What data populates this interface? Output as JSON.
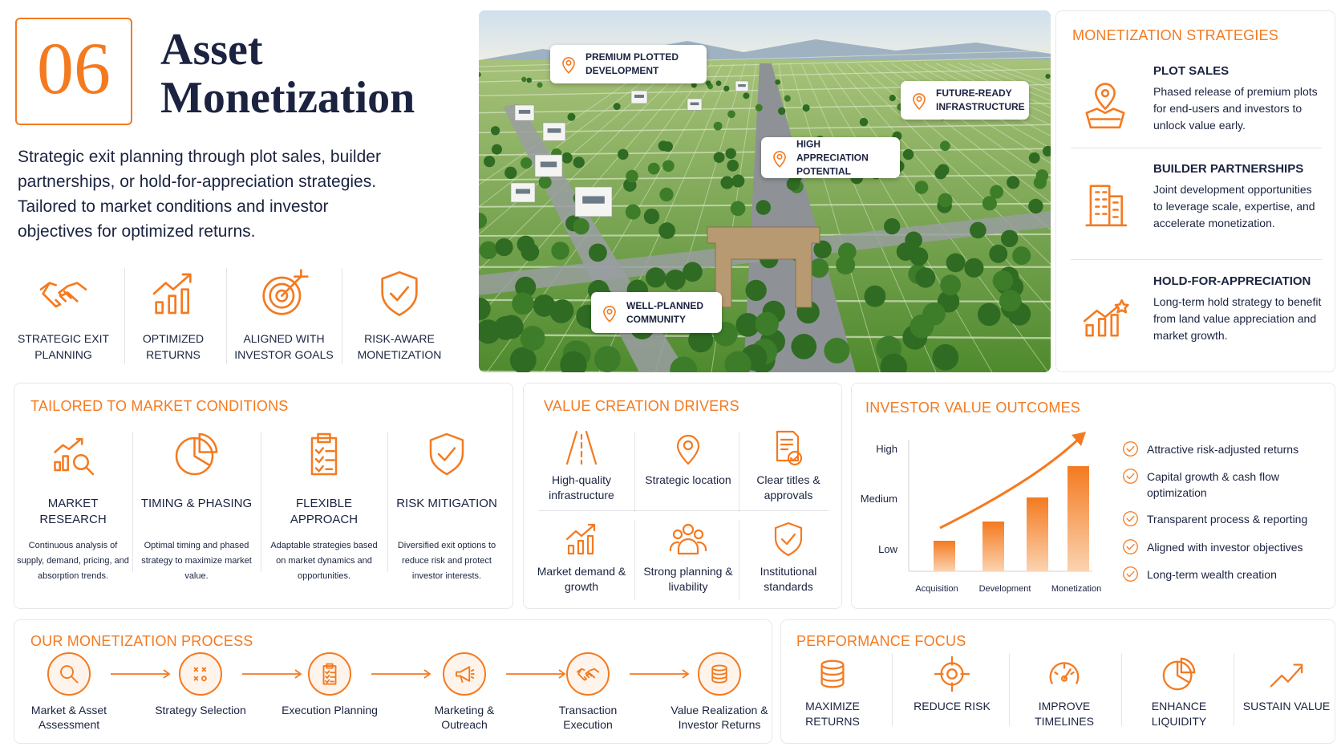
{
  "header": {
    "number": "06",
    "title": "Asset Monetization",
    "description": "Strategic exit planning through plot sales, builder partnerships, or hold-for-appreciation strategies. Tailored to market conditions and investor objectives for optimized returns."
  },
  "highlights": [
    "STRATEGIC EXIT PLANNING",
    "OPTIMIZED RETURNS",
    "ALIGNED WITH INVESTOR GOALS",
    "RISK-AWARE MONETIZATION"
  ],
  "image_callouts": [
    "PREMIUM PLOTTED DEVELOPMENT",
    "FUTURE-READY INFRASTRUCTURE",
    "HIGH APPRECIATION POTENTIAL",
    "WELL-PLANNED COMMUNITY"
  ],
  "monetization_strategies": {
    "title": "MONETIZATION STRATEGIES",
    "items": [
      {
        "title": "PLOT SALES",
        "text": "Phased release of premium plots for end-users and investors to unlock value early."
      },
      {
        "title": "BUILDER PARTNERSHIPS",
        "text": "Joint development opportunities to leverage scale, expertise, and accelerate monetization."
      },
      {
        "title": "HOLD-FOR-APPRECIATION",
        "text": "Long-term hold strategy to benefit from land value appreciation and market growth."
      }
    ]
  },
  "market_conditions": {
    "title": "TAILORED TO MARKET CONDITIONS",
    "items": [
      {
        "title": "MARKET RESEARCH",
        "text": "Continuous analysis of supply, demand, pricing, and absorption trends."
      },
      {
        "title": "TIMING & PHASING",
        "text": "Optimal timing and phased strategy to maximize market value."
      },
      {
        "title": "FLEXIBLE APPROACH",
        "text": "Adaptable strategies based on market dynamics and opportunities."
      },
      {
        "title": "RISK MITIGATION",
        "text": "Diversified exit options to reduce risk and protect investor interests."
      }
    ]
  },
  "value_drivers": {
    "title": "VALUE CREATION DRIVERS",
    "items": [
      "High-quality infrastructure",
      "Strategic location",
      "Clear titles & approvals",
      "Market demand & growth",
      "Strong planning & livability",
      "Institutional standards"
    ]
  },
  "investor_outcomes": {
    "title": "INVESTOR VALUE OUTCOMES",
    "y_labels": [
      "High",
      "Medium",
      "Low"
    ],
    "x_labels": [
      "Acquisition",
      "Development",
      "Monetization"
    ],
    "outcomes": [
      "Attractive risk-adjusted returns",
      "Capital growth & cash flow optimization",
      "Transparent process & reporting",
      "Aligned with investor objectives",
      "Long-term wealth creation"
    ]
  },
  "process": {
    "title": "OUR MONETIZATION PROCESS",
    "steps": [
      "Market & Asset Assessment",
      "Strategy Selection",
      "Execution Planning",
      "Marketing & Outreach",
      "Transaction Execution",
      "Value Realization & Investor Returns"
    ]
  },
  "performance": {
    "title": "PERFORMANCE FOCUS",
    "items": [
      "MAXIMIZE RETURNS",
      "REDUCE RISK",
      "IMPROVE TIMELINES",
      "ENHANCE LIQUIDITY",
      "SUSTAIN VALUE"
    ]
  }
}
